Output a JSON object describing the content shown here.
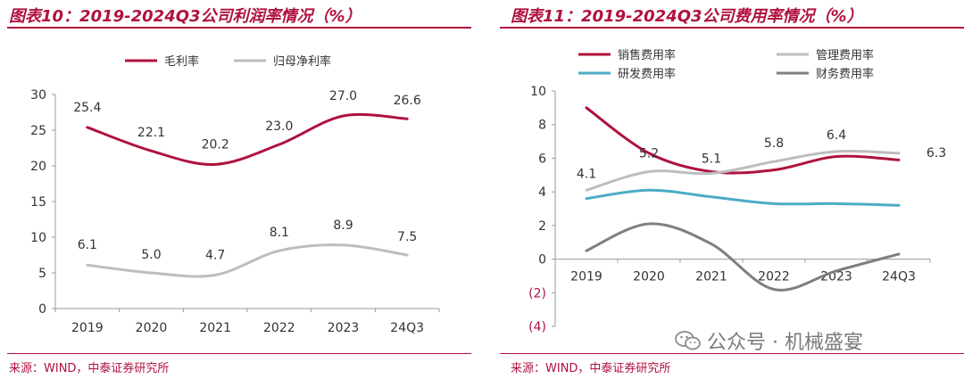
{
  "left": {
    "title": "图表10：2019-2024Q3公司利润率情况（%）",
    "source": "来源：WIND，中泰证券研究所"
  },
  "right": {
    "title": "图表11：2019-2024Q3公司费用率情况（%）",
    "source": "来源：WIND，中泰证券研究所"
  },
  "watermark": {
    "text": "公众号 · 机械盛宴",
    "icon": "wechat-icon"
  },
  "colors": {
    "accent": "#b0123e",
    "gray_light": "#bdbdbd",
    "teal": "#4bacc6",
    "gray_dark": "#7f7f7f"
  },
  "chart_data": [
    {
      "type": "line",
      "categories": [
        "2019",
        "2020",
        "2021",
        "2022",
        "2023",
        "24Q3"
      ],
      "ylim": [
        0,
        30
      ],
      "yticks": [
        "0",
        "5",
        "10",
        "15",
        "20",
        "25",
        "30"
      ],
      "legend_position": "top",
      "grid": false,
      "series": [
        {
          "name": "毛利率",
          "values": [
            25.4,
            22.1,
            20.2,
            23.0,
            27.0,
            26.6
          ],
          "labels": [
            "25.4",
            "22.1",
            "20.2",
            "23.0",
            "27.0",
            "26.6"
          ],
          "color": "#b0123e"
        },
        {
          "name": "归母净利率",
          "values": [
            6.1,
            5.0,
            4.7,
            8.1,
            8.9,
            7.5
          ],
          "labels": [
            "6.1",
            "5.0",
            "4.7",
            "8.1",
            "8.9",
            "7.5"
          ],
          "color": "#bdbdbd"
        }
      ]
    },
    {
      "type": "line",
      "categories": [
        "2019",
        "2020",
        "2021",
        "2022",
        "2023",
        "24Q3"
      ],
      "ylim": [
        -4,
        10
      ],
      "yticks": [
        "(4)",
        "(2)",
        "0",
        "2",
        "4",
        "6",
        "8",
        "10"
      ],
      "legend_position": "top",
      "grid": false,
      "series": [
        {
          "name": "销售费用率",
          "values": [
            9.0,
            6.3,
            5.2,
            5.3,
            6.1,
            5.9
          ],
          "color": "#b0123e"
        },
        {
          "name": "管理费用率",
          "values": [
            4.1,
            5.2,
            5.1,
            5.8,
            6.4,
            6.3
          ],
          "labels": [
            "4.1",
            "5.2",
            "5.1",
            "5.8",
            "6.4",
            "6.3"
          ],
          "color": "#bdbdbd"
        },
        {
          "name": "研发费用率",
          "values": [
            3.6,
            4.1,
            3.7,
            3.3,
            3.3,
            3.2
          ],
          "color": "#4bacc6"
        },
        {
          "name": "财务费用率",
          "values": [
            0.5,
            2.1,
            0.9,
            -1.8,
            -0.7,
            0.3
          ],
          "color": "#7f7f7f"
        }
      ]
    }
  ]
}
